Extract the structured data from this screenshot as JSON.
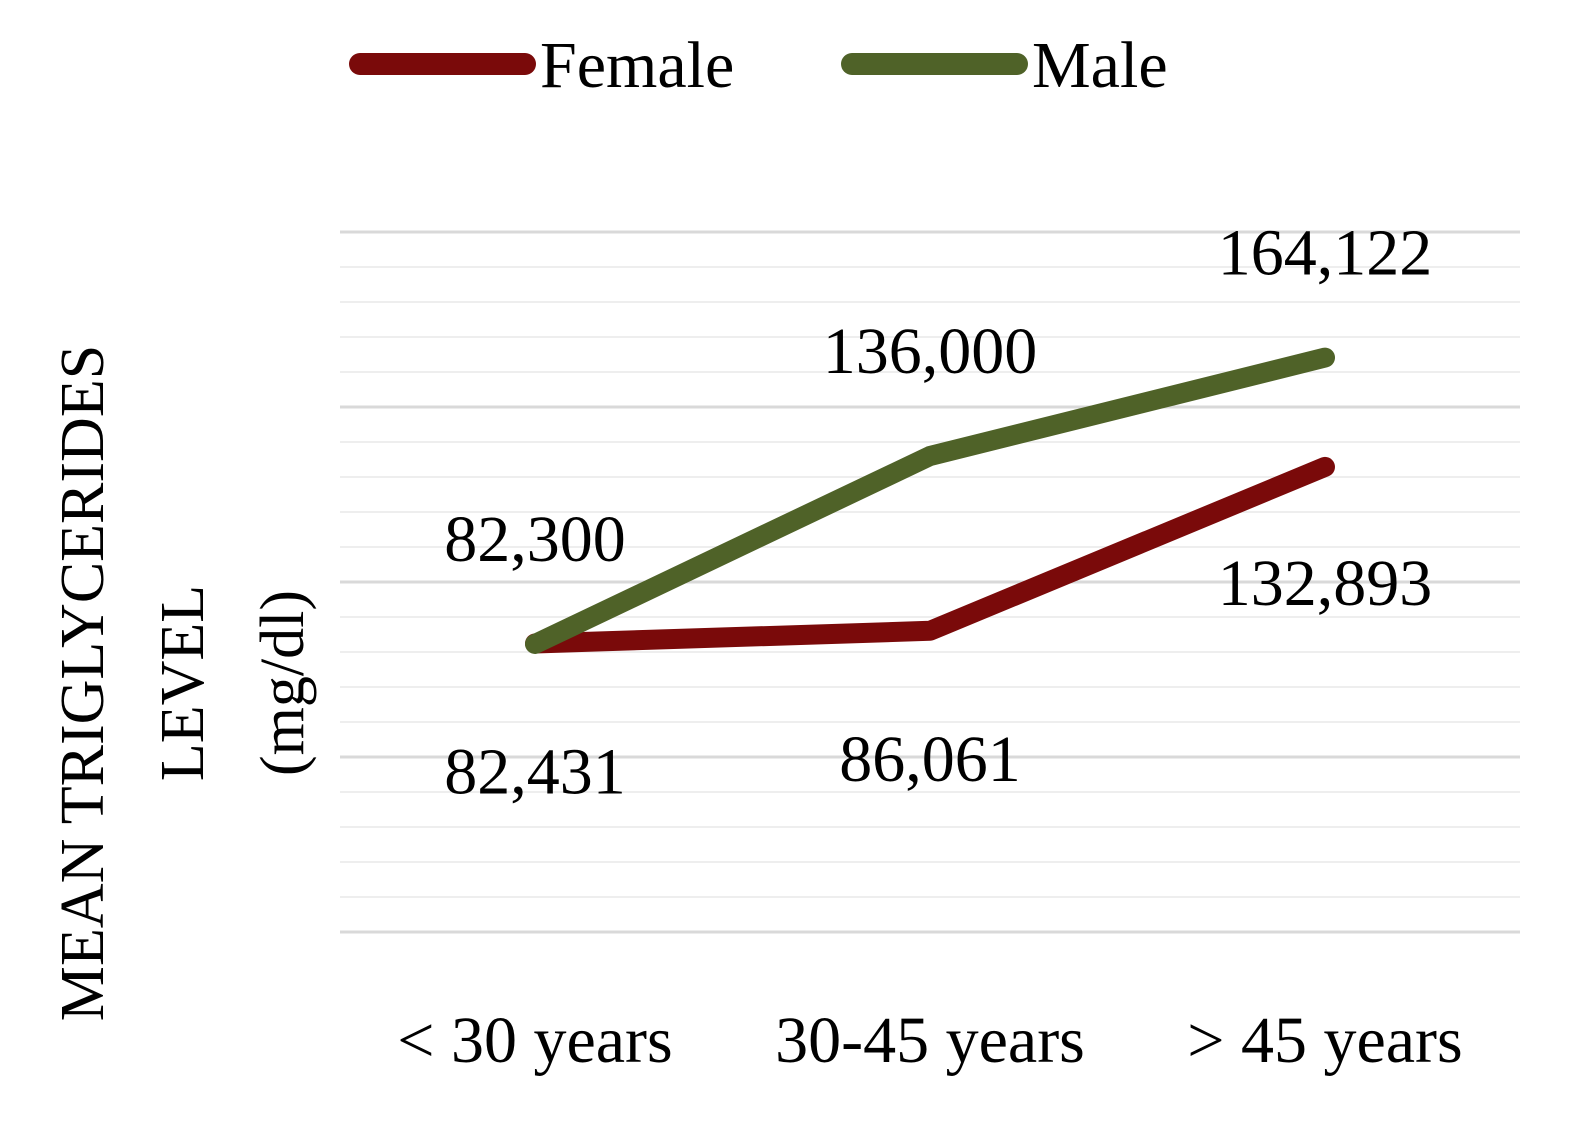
{
  "chart_data": {
    "type": "line",
    "categories": [
      "< 30 years",
      "30-45 years",
      "> 45 years"
    ],
    "series": [
      {
        "name": "Female",
        "color": "#7a0a0a",
        "values": [
          82431,
          86061,
          132893
        ],
        "labels": [
          "82,431",
          "86,061",
          "132,893"
        ]
      },
      {
        "name": "Male",
        "color": "#4f6228",
        "values": [
          82300,
          136000,
          164122
        ],
        "labels": [
          "82,300",
          "136,000",
          "164,122"
        ]
      }
    ],
    "ylabel_lines": [
      "MEAN TRIGLYCERIDES",
      "LEVEL",
      "(mg/dl)"
    ],
    "ylim": [
      0,
      200000
    ],
    "grid": true,
    "legend_position": "top",
    "gridline_color": "#d9d9d9"
  }
}
